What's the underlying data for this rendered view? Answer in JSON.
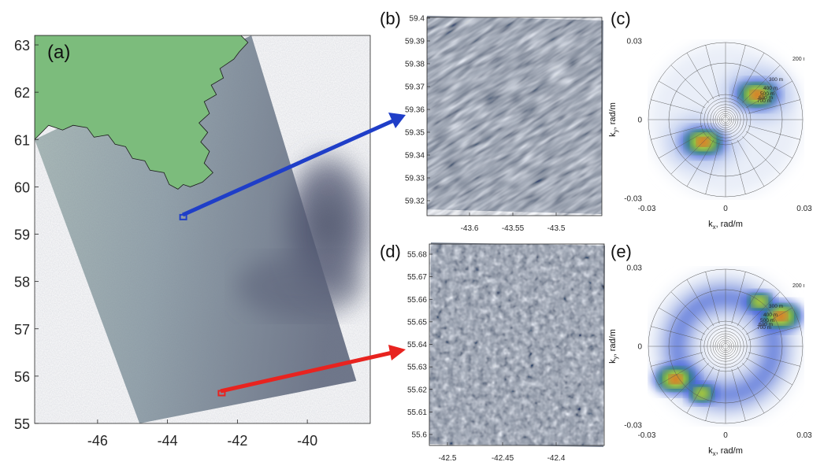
{
  "colors": {
    "land": "#7cbc7c",
    "sar_light": "#a9bdb8",
    "sar_dark": "#5b6178",
    "sar_deep": "#4a4f68",
    "arrow_blue": "#1f3ec8",
    "arrow_red": "#e8231f",
    "spec_bg": "#e9eef8",
    "spec_blue": "#3d5fd8",
    "spec_green": "#2f9a3c",
    "spec_yellow": "#e8e23a",
    "spec_red": "#d8241c"
  },
  "chart_data": [
    {
      "panel": "(a)",
      "type": "map",
      "x_ticks": [
        "-46",
        "-44",
        "-42",
        "-40"
      ],
      "y_ticks": [
        "63",
        "62",
        "61",
        "60",
        "59",
        "58",
        "57",
        "56",
        "55"
      ],
      "xlim": [
        -47.8,
        -38.2
      ],
      "ylim": [
        55,
        63.2
      ],
      "swath_corners": [
        [
          -47.8,
          61.0
        ],
        [
          -41.6,
          63.2
        ],
        [
          -38.6,
          55.9
        ],
        [
          -44.8,
          55.0
        ]
      ],
      "boxes": [
        {
          "name": "blue-box",
          "lon": -43.55,
          "lat": 59.36,
          "color": "blue"
        },
        {
          "name": "red-box",
          "lon": -42.45,
          "lat": 55.64,
          "color": "red"
        }
      ]
    },
    {
      "panel": "(b)",
      "type": "image",
      "x_ticks": [
        "-43.6",
        "-43.55",
        "-43.5"
      ],
      "y_ticks": [
        "59.4",
        "59.39",
        "59.38",
        "59.37",
        "59.36",
        "59.35",
        "59.34",
        "59.33",
        "59.32"
      ],
      "texture": "oriented"
    },
    {
      "panel": "(c)",
      "type": "polar",
      "xlabel": "k",
      "xlabel_sub": "x",
      "xlabel_unit": ", rad/m",
      "ylabel": "k",
      "ylabel_sub": "y",
      "ylabel_unit": ", rad/m",
      "x_ticks": [
        "-0.03",
        "0",
        "0.03"
      ],
      "y_ticks": [
        "0.03",
        "0",
        "-0.03"
      ],
      "wavelength_labels": [
        "200 m",
        "300 m",
        "400 m",
        "500 m",
        "600 m",
        "700 m"
      ],
      "peaks": [
        {
          "kx": 0.012,
          "ky": 0.0095,
          "strength": 1.0
        },
        {
          "kx": -0.0085,
          "ky": -0.0085,
          "strength": 1.0
        }
      ]
    },
    {
      "panel": "(d)",
      "type": "image",
      "x_ticks": [
        "-42.5",
        "-42.45",
        "-42.4"
      ],
      "y_ticks": [
        "55.68",
        "55.67",
        "55.66",
        "55.65",
        "55.64",
        "55.63",
        "55.62",
        "55.61",
        "55.6"
      ],
      "texture": "isotropic"
    },
    {
      "panel": "(e)",
      "type": "polar",
      "xlabel": "k",
      "xlabel_sub": "x",
      "xlabel_unit": ", rad/m",
      "ylabel": "k",
      "ylabel_sub": "y",
      "ylabel_unit": ", rad/m",
      "x_ticks": [
        "-0.03",
        "0",
        "0.03"
      ],
      "y_ticks": [
        "0.03",
        "0",
        "-0.03"
      ],
      "wavelength_labels": [
        "200 m",
        "300 m",
        "400 m",
        "500 m",
        "600 m",
        "700 m"
      ],
      "peaks": [
        {
          "kx": 0.021,
          "ky": 0.0115,
          "strength": 1.0
        },
        {
          "kx": 0.013,
          "ky": 0.017,
          "strength": 0.6
        },
        {
          "kx": -0.019,
          "ky": -0.0125,
          "strength": 1.0
        },
        {
          "kx": -0.009,
          "ky": -0.018,
          "strength": 0.6
        }
      ]
    }
  ]
}
